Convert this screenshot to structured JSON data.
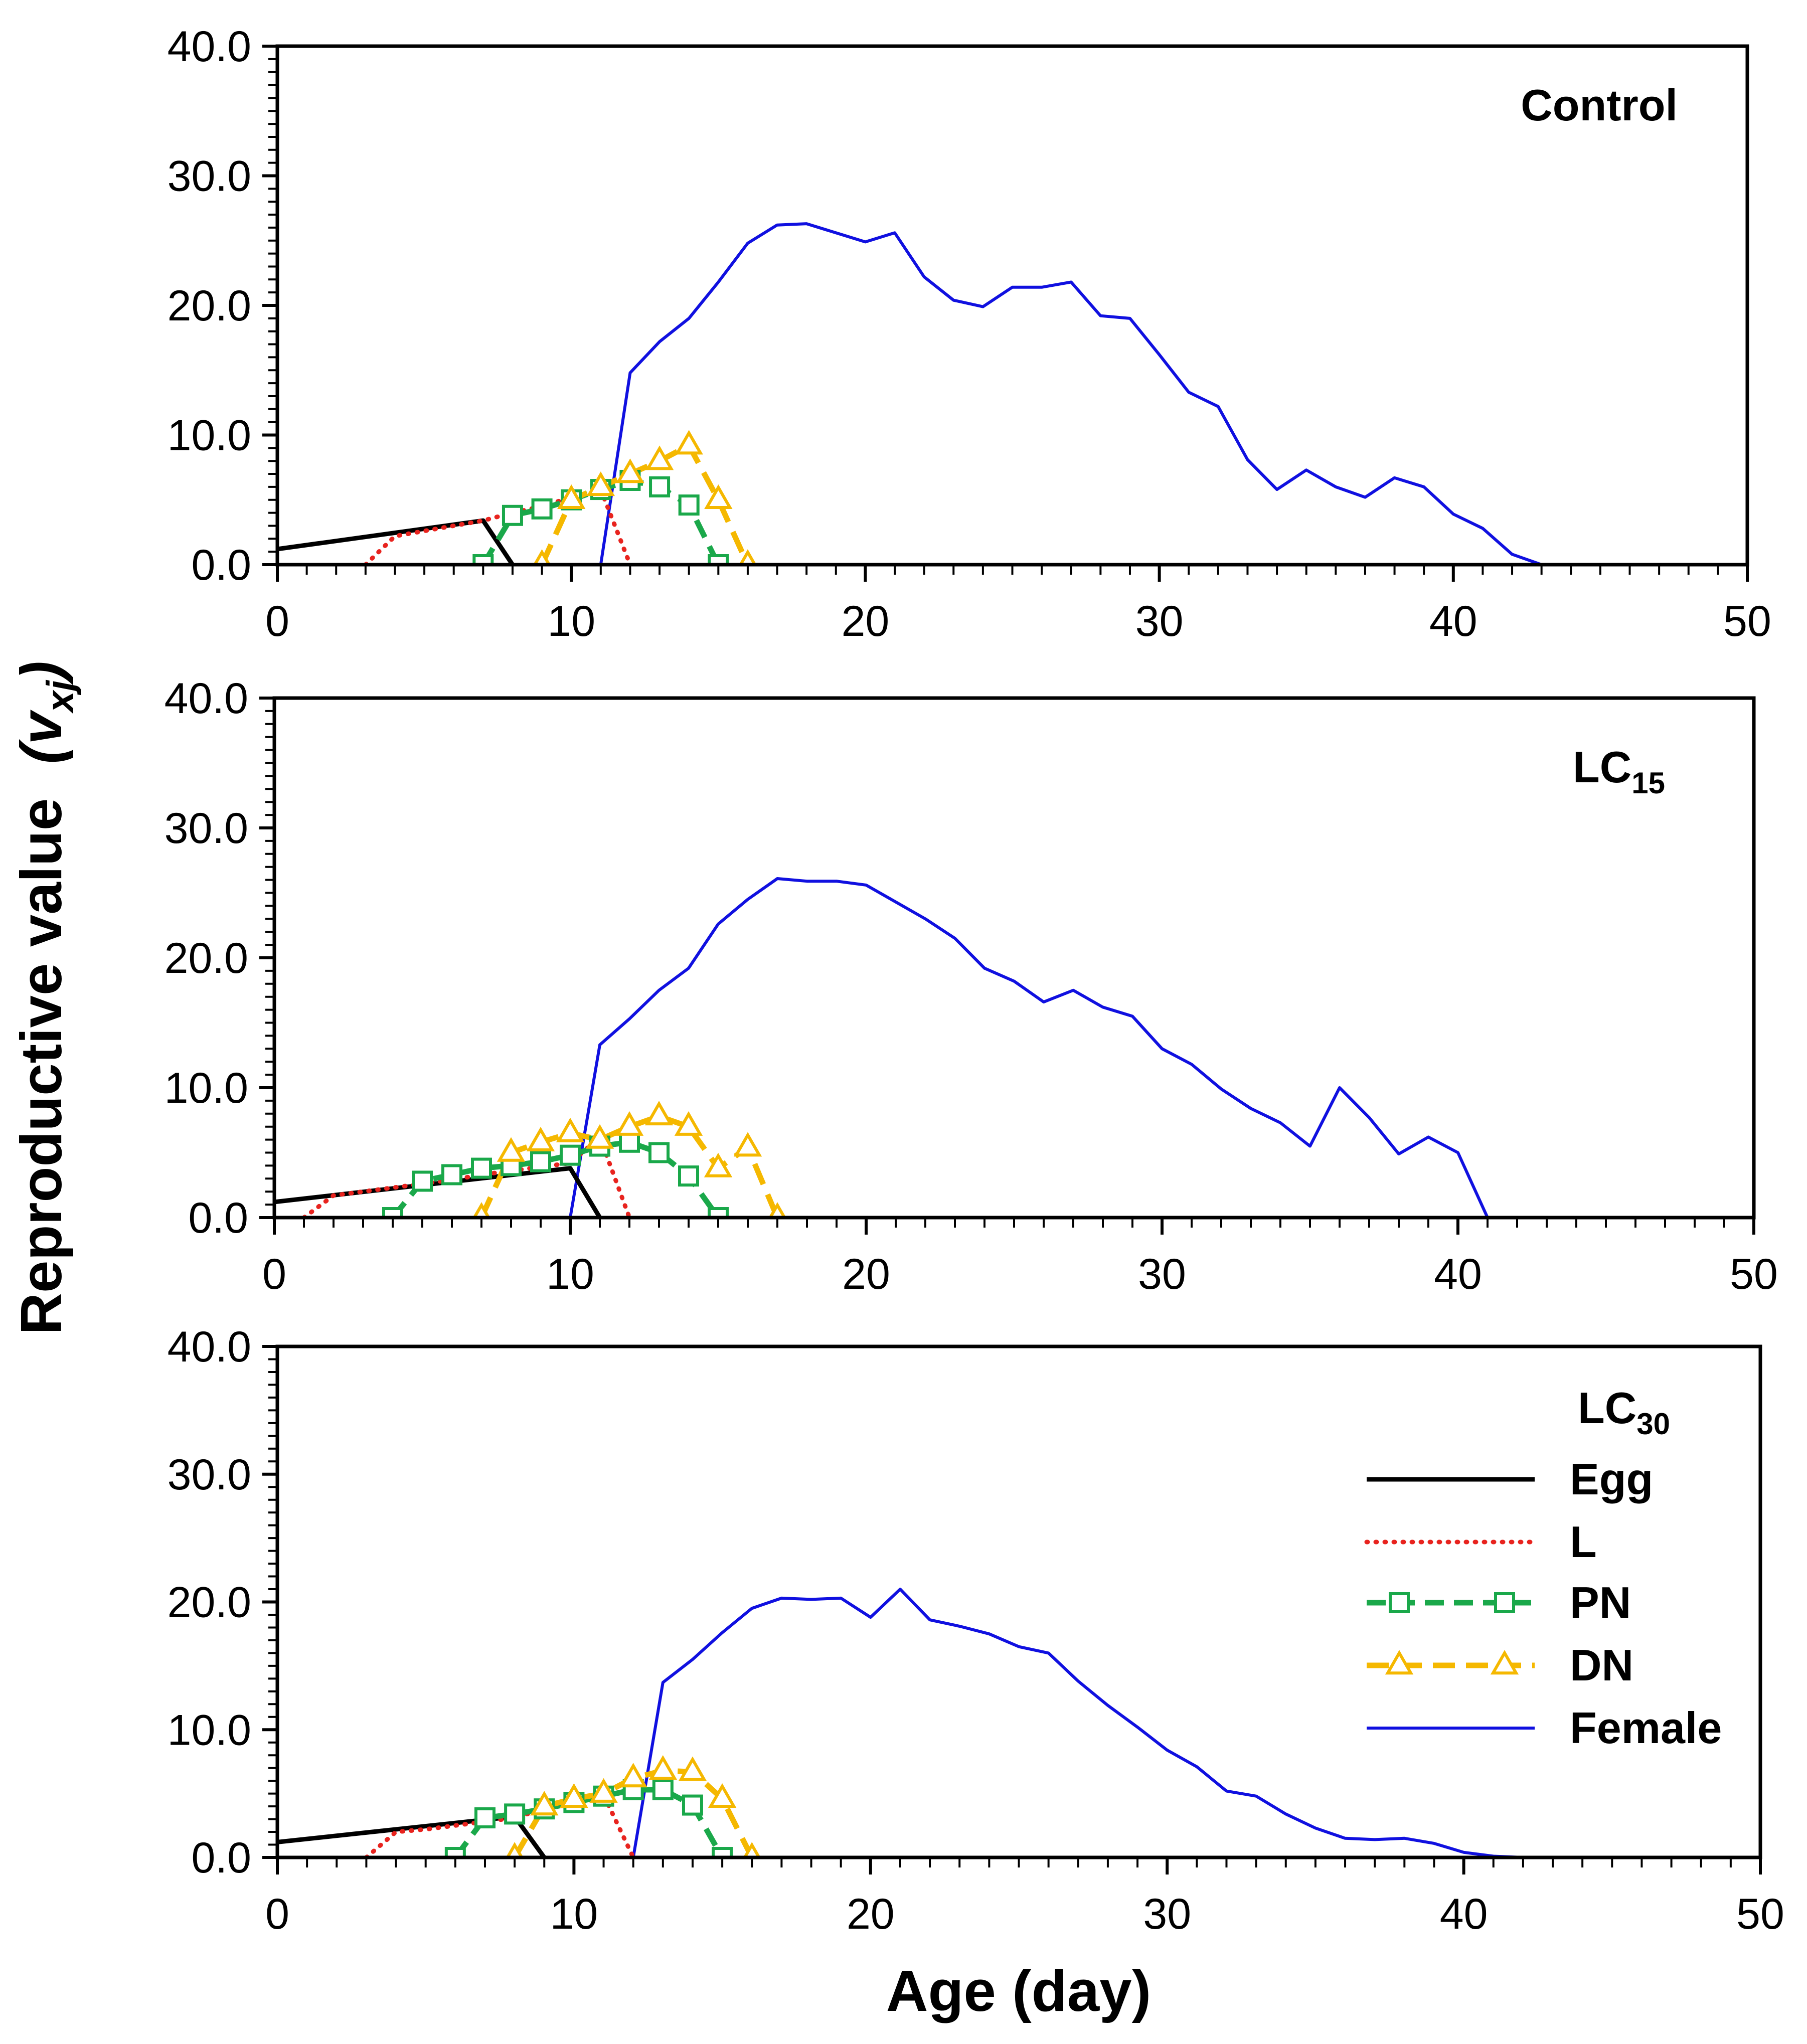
{
  "chart_data": {
    "type": "line",
    "y_axis_title": "Reproductive value",
    "y_axis_symbol": {
      "base": "v",
      "sub": "xj"
    },
    "x_axis_title": "Age (day)",
    "xlim": [
      0,
      50
    ],
    "ylim": [
      0,
      40
    ],
    "x_ticks": [
      0,
      10,
      20,
      30,
      40,
      50
    ],
    "x_tick_labels": [
      "0",
      "10",
      "20",
      "30",
      "40",
      "50"
    ],
    "y_ticks": [
      0,
      10,
      20,
      30,
      40
    ],
    "y_tick_labels": [
      "0.0",
      "10.0",
      "20.0",
      "30.0",
      "40.0"
    ],
    "legend": {
      "placement": "right, lower panel",
      "entries": [
        {
          "name": "Egg",
          "color": "#000000",
          "style": "solid-thick"
        },
        {
          "name": "L",
          "color": "#e8231e",
          "style": "dotted"
        },
        {
          "name": "PN",
          "color": "#1aa84a",
          "style": "dashed-square"
        },
        {
          "name": "DN",
          "color": "#f5b800",
          "style": "dashed-triangle"
        },
        {
          "name": "Female",
          "color": "#1010e0",
          "style": "solid-thin"
        }
      ]
    },
    "panels": [
      {
        "label": "Control",
        "label_sub": "",
        "series": {
          "Egg": {
            "x": [
              0,
              7,
              8
            ],
            "y": [
              1.2,
              3.4,
              0
            ]
          },
          "L": {
            "x": [
              3,
              4,
              5,
              6,
              7,
              8,
              9,
              10,
              11,
              12
            ],
            "y": [
              0,
              2.2,
              2.6,
              3.0,
              3.4,
              4.0,
              4.5,
              5.2,
              5.8,
              0
            ]
          },
          "PN": {
            "x": [
              7,
              8,
              9,
              10,
              11,
              12,
              13,
              14,
              15
            ],
            "y": [
              0,
              3.8,
              4.3,
              5.0,
              5.8,
              6.5,
              6.0,
              4.6,
              0
            ]
          },
          "DN": {
            "x": [
              9,
              10,
              11,
              12,
              13,
              14,
              15,
              16
            ],
            "y": [
              0,
              5.0,
              6.0,
              7.0,
              8.0,
              9.2,
              5.0,
              0
            ]
          },
          "Female": {
            "x": [
              11,
              12,
              13,
              14,
              15,
              16,
              17,
              18,
              19,
              20,
              21,
              22,
              23,
              24,
              25,
              26,
              27,
              28,
              29,
              30,
              31,
              32,
              33,
              34,
              35,
              36,
              37,
              38,
              39,
              40,
              41,
              42,
              43
            ],
            "y": [
              0,
              14.8,
              17.2,
              19.0,
              21.8,
              24.8,
              26.2,
              26.3,
              25.6,
              24.9,
              25.6,
              22.2,
              20.4,
              19.9,
              21.4,
              21.4,
              21.8,
              19.2,
              19.0,
              16.2,
              13.3,
              12.2,
              8.1,
              5.8,
              7.3,
              6.0,
              5.2,
              6.7,
              6.0,
              3.9,
              2.8,
              0.8,
              0
            ]
          }
        }
      },
      {
        "label": "LC",
        "label_sub": "15",
        "series": {
          "Egg": {
            "x": [
              0,
              10,
              11
            ],
            "y": [
              1.2,
              3.8,
              0
            ]
          },
          "L": {
            "x": [
              1,
              2,
              3,
              4,
              5,
              6,
              7,
              8,
              9,
              10,
              11,
              12
            ],
            "y": [
              0,
              1.7,
              2.0,
              2.3,
              2.6,
              2.9,
              3.3,
              3.6,
              3.9,
              4.2,
              6.2,
              0
            ]
          },
          "PN": {
            "x": [
              4,
              5,
              6,
              7,
              8,
              9,
              10,
              11,
              12,
              13,
              14,
              15
            ],
            "y": [
              0,
              2.8,
              3.3,
              3.8,
              4.0,
              4.3,
              4.8,
              5.5,
              5.8,
              5.0,
              3.2,
              0
            ]
          },
          "DN": {
            "x": [
              7,
              8,
              9,
              10,
              11,
              12,
              13,
              14,
              15,
              16,
              17
            ],
            "y": [
              0,
              5.0,
              5.8,
              6.5,
              6.0,
              7.0,
              7.8,
              7.0,
              3.8,
              5.4,
              0
            ]
          },
          "Female": {
            "x": [
              10,
              11,
              12,
              13,
              14,
              15,
              16,
              17,
              18,
              19,
              20,
              21,
              22,
              23,
              24,
              25,
              26,
              27,
              28,
              29,
              30,
              31,
              32,
              33,
              34,
              35,
              36,
              37,
              38,
              39,
              40,
              41
            ],
            "y": [
              0,
              13.3,
              15.3,
              17.5,
              19.2,
              22.6,
              24.5,
              26.1,
              25.9,
              25.9,
              25.6,
              24.3,
              23.0,
              21.5,
              19.2,
              18.2,
              16.6,
              17.5,
              16.2,
              15.5,
              13.0,
              11.8,
              9.9,
              8.4,
              7.3,
              5.5,
              10.0,
              7.7,
              4.9,
              6.2,
              5.0,
              0
            ]
          }
        }
      },
      {
        "label": "LC",
        "label_sub": "30",
        "series": {
          "Egg": {
            "x": [
              0,
              8,
              9
            ],
            "y": [
              1.2,
              3.2,
              0
            ]
          },
          "L": {
            "x": [
              3,
              4,
              5,
              6,
              7,
              8,
              9,
              10,
              11,
              12
            ],
            "y": [
              0,
              2.0,
              2.2,
              2.5,
              2.8,
              3.1,
              3.8,
              4.2,
              4.9,
              0
            ]
          },
          "PN": {
            "x": [
              6,
              7,
              8,
              9,
              10,
              11,
              12,
              13,
              14,
              15
            ],
            "y": [
              0,
              3.1,
              3.4,
              3.8,
              4.3,
              4.8,
              5.3,
              5.3,
              4.1,
              0
            ]
          },
          "DN": {
            "x": [
              8,
              9,
              10,
              11,
              12,
              13,
              14,
              15,
              16
            ],
            "y": [
              0,
              4.0,
              4.6,
              5.0,
              6.2,
              6.8,
              6.7,
              4.6,
              0
            ]
          },
          "Female": {
            "x": [
              12,
              13,
              14,
              15,
              16,
              17,
              18,
              19,
              20,
              21,
              22,
              23,
              24,
              25,
              26,
              27,
              28,
              29,
              30,
              31,
              32,
              33,
              34,
              35,
              36,
              37,
              38,
              39,
              40,
              41,
              42
            ],
            "y": [
              0,
              13.7,
              15.5,
              17.6,
              19.5,
              20.3,
              20.2,
              20.3,
              18.8,
              21.0,
              18.6,
              18.1,
              17.5,
              16.5,
              16.0,
              13.8,
              11.9,
              10.2,
              8.4,
              7.1,
              5.2,
              4.8,
              3.4,
              2.3,
              1.5,
              1.4,
              1.5,
              1.1,
              0.4,
              0.1,
              0
            ]
          }
        }
      }
    ]
  }
}
